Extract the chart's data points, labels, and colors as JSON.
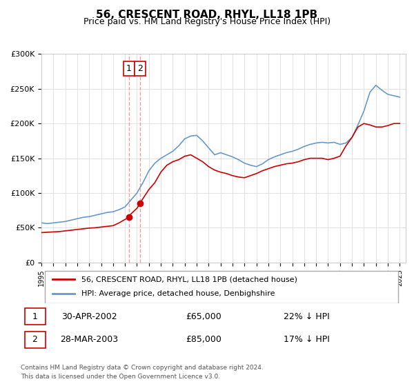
{
  "title": "56, CRESCENT ROAD, RHYL, LL18 1PB",
  "subtitle": "Price paid vs. HM Land Registry's House Price Index (HPI)",
  "legend_line1": "56, CRESCENT ROAD, RHYL, LL18 1PB (detached house)",
  "legend_line2": "HPI: Average price, detached house, Denbighshire",
  "transaction1_label": "1",
  "transaction1_date": "30-APR-2002",
  "transaction1_price": "£65,000",
  "transaction1_hpi": "22% ↓ HPI",
  "transaction2_label": "2",
  "transaction2_date": "28-MAR-2003",
  "transaction2_price": "£85,000",
  "transaction2_hpi": "17% ↓ HPI",
  "footer1": "Contains HM Land Registry data © Crown copyright and database right 2024.",
  "footer2": "This data is licensed under the Open Government Licence v3.0.",
  "hpi_color": "#6699cc",
  "price_color": "#cc0000",
  "dashed_line_color": "#ff9999",
  "marker_color": "#cc0000",
  "ylim": [
    0,
    300000
  ],
  "yticks": [
    0,
    50000,
    100000,
    150000,
    200000,
    250000,
    300000
  ],
  "xlim_start": 1995.0,
  "xlim_end": 2025.5,
  "transaction1_x": 2002.33,
  "transaction1_y": 65000,
  "transaction2_x": 2003.25,
  "transaction2_y": 85000,
  "hpi_start_year": 1995,
  "hpi_x": [
    1995.0,
    1995.5,
    1996.0,
    1996.5,
    1997.0,
    1997.5,
    1998.0,
    1998.5,
    1999.0,
    1999.5,
    2000.0,
    2000.5,
    2001.0,
    2001.5,
    2002.0,
    2002.5,
    2003.0,
    2003.5,
    2004.0,
    2004.5,
    2005.0,
    2005.5,
    2006.0,
    2006.5,
    2007.0,
    2007.5,
    2008.0,
    2008.5,
    2009.0,
    2009.5,
    2010.0,
    2010.5,
    2011.0,
    2011.5,
    2012.0,
    2012.5,
    2013.0,
    2013.5,
    2014.0,
    2014.5,
    2015.0,
    2015.5,
    2016.0,
    2016.5,
    2017.0,
    2017.5,
    2018.0,
    2018.5,
    2019.0,
    2019.5,
    2020.0,
    2020.5,
    2021.0,
    2021.5,
    2022.0,
    2022.5,
    2023.0,
    2023.5,
    2024.0,
    2024.5,
    2025.0
  ],
  "hpi_y": [
    57000,
    56000,
    57000,
    58000,
    59000,
    61000,
    63000,
    65000,
    66000,
    68000,
    70000,
    72000,
    73000,
    76000,
    80000,
    90000,
    100000,
    115000,
    132000,
    143000,
    150000,
    155000,
    160000,
    168000,
    178000,
    182000,
    183000,
    175000,
    165000,
    155000,
    158000,
    155000,
    152000,
    148000,
    143000,
    140000,
    138000,
    142000,
    148000,
    152000,
    155000,
    158000,
    160000,
    163000,
    167000,
    170000,
    172000,
    173000,
    172000,
    173000,
    170000,
    172000,
    180000,
    198000,
    218000,
    245000,
    255000,
    248000,
    242000,
    240000,
    238000
  ],
  "price_x": [
    1995.0,
    1995.5,
    1996.0,
    1996.5,
    1997.0,
    1997.5,
    1998.0,
    1998.5,
    1999.0,
    1999.5,
    2000.0,
    2000.5,
    2001.0,
    2001.5,
    2002.0,
    2002.33,
    2002.5,
    2003.0,
    2003.25,
    2003.5,
    2004.0,
    2004.5,
    2005.0,
    2005.5,
    2006.0,
    2006.5,
    2007.0,
    2007.5,
    2008.0,
    2008.5,
    2009.0,
    2009.5,
    2010.0,
    2010.5,
    2011.0,
    2011.5,
    2012.0,
    2012.5,
    2013.0,
    2013.5,
    2014.0,
    2014.5,
    2015.0,
    2015.5,
    2016.0,
    2016.5,
    2017.0,
    2017.5,
    2018.0,
    2018.5,
    2019.0,
    2019.5,
    2020.0,
    2020.5,
    2021.0,
    2021.5,
    2022.0,
    2022.5,
    2023.0,
    2023.5,
    2024.0,
    2024.5,
    2025.0
  ],
  "price_y": [
    43000,
    43500,
    44000,
    44500,
    45500,
    46500,
    47500,
    48500,
    49500,
    50000,
    51000,
    52000,
    53000,
    57000,
    62000,
    65000,
    70000,
    78000,
    85000,
    92000,
    105000,
    115000,
    130000,
    140000,
    145000,
    148000,
    153000,
    155000,
    150000,
    145000,
    138000,
    133000,
    130000,
    128000,
    125000,
    123000,
    122000,
    125000,
    128000,
    132000,
    135000,
    138000,
    140000,
    142000,
    143000,
    145000,
    148000,
    150000,
    150000,
    150000,
    148000,
    150000,
    153000,
    168000,
    180000,
    195000,
    200000,
    198000,
    195000,
    195000,
    197000,
    200000,
    200000
  ]
}
